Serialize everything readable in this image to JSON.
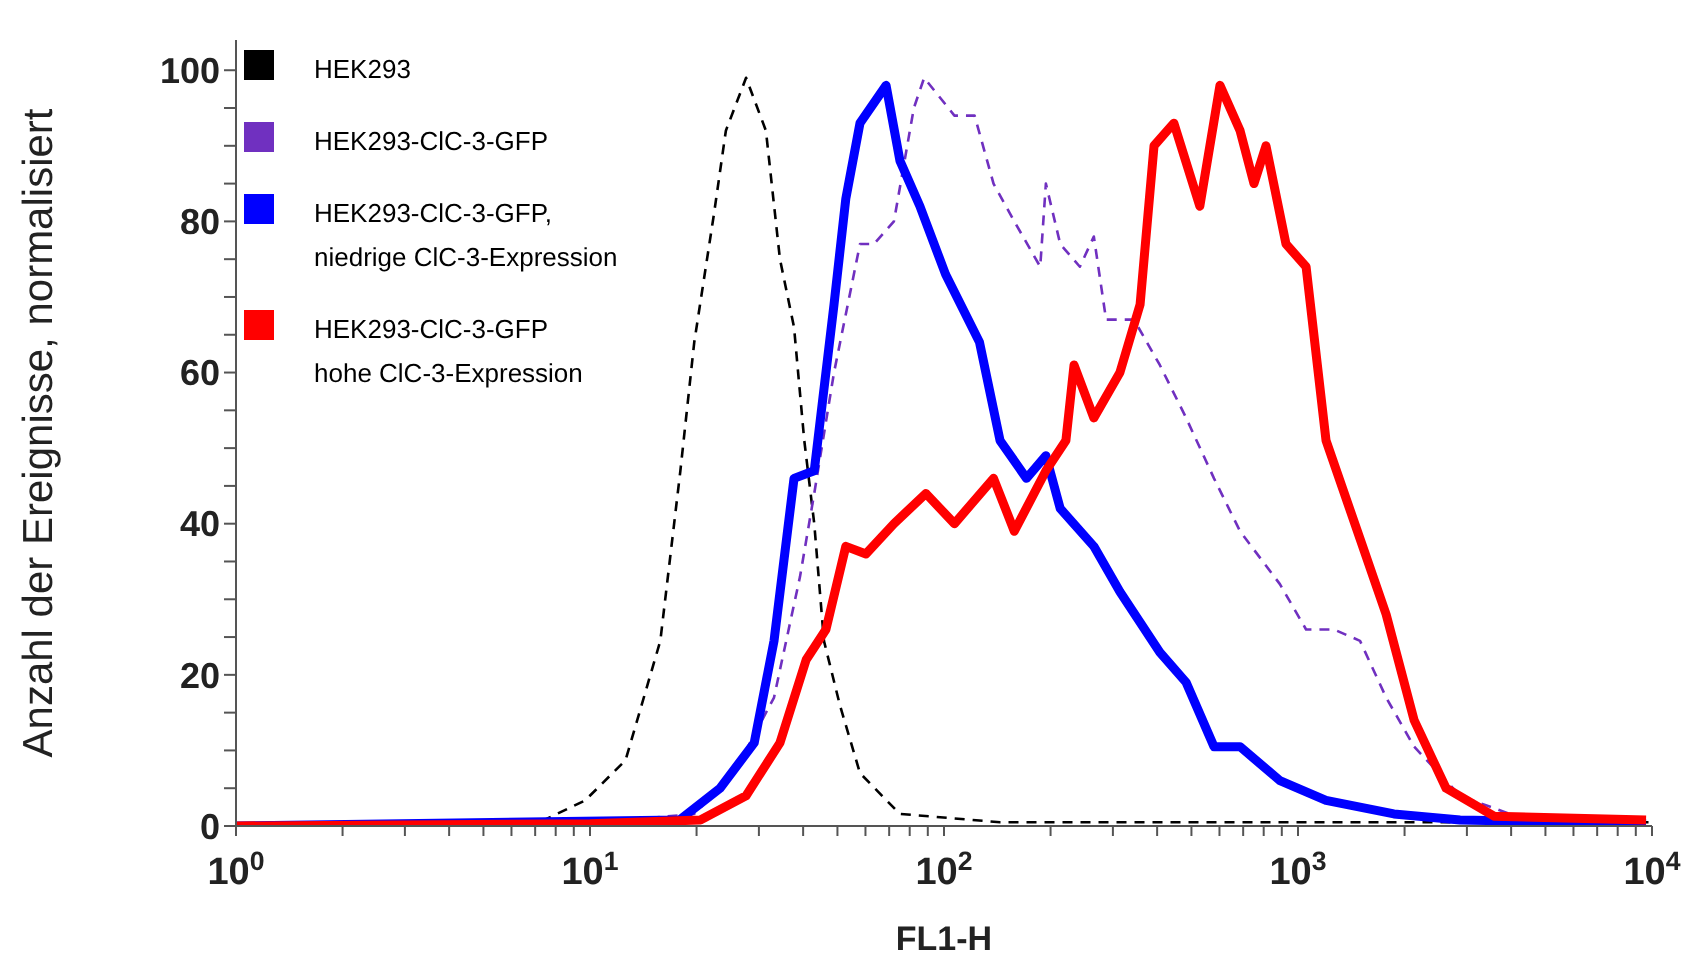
{
  "chart_data": {
    "type": "line",
    "xlabel": "FL1-H",
    "ylabel": "Anzahl der Ereignisse, normalisiert",
    "log": "x",
    "xlim": [
      1,
      10000
    ],
    "ylim": [
      0,
      104
    ],
    "xticks": [
      {
        "value": 1,
        "label": "10$^{0}$"
      },
      {
        "value": 2,
        "label": null
      },
      {
        "value": 3,
        "label": null
      },
      {
        "value": 4,
        "label": null
      },
      {
        "value": 5,
        "label": null
      },
      {
        "value": 6,
        "label": null
      },
      {
        "value": 7,
        "label": null
      },
      {
        "value": 8,
        "label": null
      },
      {
        "value": 9,
        "label": null
      },
      {
        "value": 10,
        "label": "10$^{1}$"
      },
      {
        "value": 20,
        "label": null
      },
      {
        "value": 30,
        "label": null
      },
      {
        "value": 40,
        "label": null
      },
      {
        "value": 50,
        "label": null
      },
      {
        "value": 60,
        "label": null
      },
      {
        "value": 70,
        "label": null
      },
      {
        "value": 80,
        "label": null
      },
      {
        "value": 90,
        "label": null
      },
      {
        "value": 100,
        "label": "10$^{2}$"
      },
      {
        "value": 200,
        "label": null
      },
      {
        "value": 300,
        "label": null
      },
      {
        "value": 400,
        "label": null
      },
      {
        "value": 500,
        "label": null
      },
      {
        "value": 600,
        "label": null
      },
      {
        "value": 700,
        "label": null
      },
      {
        "value": 800,
        "label": null
      },
      {
        "value": 900,
        "label": null
      },
      {
        "value": 1000,
        "label": "10$^{3}$"
      },
      {
        "value": 2000,
        "label": null
      },
      {
        "value": 3000,
        "label": null
      },
      {
        "value": 4000,
        "label": null
      },
      {
        "value": 5000,
        "label": null
      },
      {
        "value": 6000,
        "label": null
      },
      {
        "value": 7000,
        "label": null
      },
      {
        "value": 8000,
        "label": null
      },
      {
        "value": 9000,
        "label": null
      },
      {
        "value": 10000,
        "label": "10$^{4}$"
      }
    ],
    "yticks": [
      0,
      {
        "value": 5,
        "label": null
      },
      {
        "value": 10,
        "label": null
      },
      {
        "value": 15,
        "label": null
      },
      20,
      {
        "value": 25,
        "label": null
      },
      {
        "value": 30,
        "label": null
      },
      {
        "value": 35,
        "label": null
      },
      40,
      {
        "value": 45,
        "label": null
      },
      {
        "value": 50,
        "label": null
      },
      {
        "value": 55,
        "label": null
      },
      60,
      {
        "value": 65,
        "label": null
      },
      {
        "value": 70,
        "label": null
      },
      {
        "value": 75,
        "label": null
      },
      80,
      {
        "value": 85,
        "label": null
      },
      {
        "value": 90,
        "label": null
      },
      {
        "value": 95,
        "label": null
      },
      100
    ],
    "grid": false,
    "legend": "top left",
    "marker": "none",
    "series": [
      {
        "name": "HEK293",
        "color": "#000000",
        "line_style": "dashed",
        "x": [
          1,
          7.2,
          9.7,
          12.6,
          15.8,
          18,
          19.7,
          22.4,
          24.2,
          27.6,
          31.4,
          34.4,
          37.7,
          40.3,
          43,
          45.8,
          50.8,
          57.9,
          75,
          144,
          528,
          10000
        ],
        "values": [
          0,
          0.5,
          3.4,
          8.7,
          24.5,
          47,
          64,
          81,
          92,
          99,
          92,
          75,
          66,
          51,
          40,
          24.5,
          16,
          7,
          1.6,
          0.5,
          0.5,
          0.5
        ]
      },
      {
        "name": "HEK293-ClC-3-GFP",
        "color": "#7030c0",
        "line_style": "dashed",
        "x": [
          1,
          10,
          19.7,
          25.5,
          33.1,
          39.2,
          43,
          48.9,
          57.9,
          63.4,
          72.2,
          82.2,
          87.9,
          107,
          122,
          138,
          158,
          187,
          194,
          213,
          242,
          265,
          287,
          344,
          407,
          483,
          579,
          686,
          889,
          1054,
          1264,
          1497,
          1774,
          2128,
          2870,
          4406,
          9620
        ],
        "values": [
          0,
          0.3,
          1.6,
          7,
          17,
          33,
          44,
          60,
          77,
          77,
          80,
          95,
          99,
          94,
          94,
          85,
          80,
          74,
          85,
          77,
          74,
          78,
          67,
          67,
          61,
          54,
          46,
          39,
          32,
          26,
          26,
          24.5,
          17,
          10.5,
          4,
          0.8,
          0.8
        ]
      },
      {
        "name": "HEK293-ClC-3-GFP, niedrige ClC-3-Expression",
        "color": "#0000ff",
        "line_style": "solid",
        "x": [
          1,
          17.9,
          23.3,
          29.1,
          33.1,
          37.7,
          43,
          48.9,
          52.8,
          57.9,
          68.6,
          75.1,
          85.5,
          101,
          126,
          144,
          171,
          194,
          213,
          265,
          314,
          407,
          483,
          579,
          686,
          889,
          1200,
          1866,
          2870,
          9620
        ],
        "values": [
          0,
          0.8,
          5,
          11,
          24.5,
          46,
          47,
          69,
          83,
          93,
          98,
          88,
          82,
          73,
          64,
          51,
          46,
          49,
          42,
          37,
          31,
          23,
          19,
          10.5,
          10.5,
          6,
          3.4,
          1.6,
          0.8,
          0.3
        ]
      },
      {
        "name": "HEK293-ClC-3-GFP hohe ClC-3-Expression",
        "color": "#ff0000",
        "line_style": "solid",
        "x": [
          1,
          10,
          20.5,
          27.6,
          34.4,
          40.8,
          46.4,
          52.8,
          60.2,
          72.2,
          88.9,
          107,
          138,
          158,
          194,
          221,
          233,
          265,
          314,
          358,
          392,
          446,
          528,
          602,
          686,
          751,
          812,
          925,
          1054,
          1200,
          1497,
          1774,
          2128,
          2620,
          3578,
          9620
        ],
        "values": [
          0,
          0.3,
          0.8,
          4,
          11,
          22,
          26,
          37,
          36,
          40,
          44,
          40,
          46,
          39,
          47,
          51,
          61,
          54,
          60,
          69,
          90,
          93,
          82,
          98,
          92,
          85,
          90,
          77,
          74,
          51,
          38,
          28,
          14,
          5,
          1.3,
          0.8
        ]
      }
    ]
  }
}
